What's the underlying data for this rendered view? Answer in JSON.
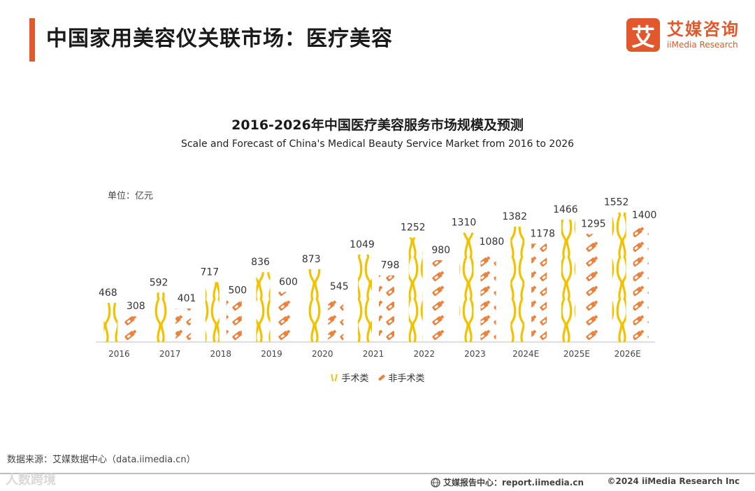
{
  "header": {
    "title": "中国家用美容仪关联市场：医疗美容",
    "brand_cn": "艾媒咨询",
    "brand_en": "iiMedia Research",
    "brand_logo_char": "艾"
  },
  "chart_data": {
    "type": "bar",
    "title": "2016-2026年中国医疗美容服务市场规模及预测",
    "subtitle": "Scale and Forecast of China's Medical Beauty Service Market from 2016 to 2026",
    "unit": "单位：亿元",
    "categories": [
      "2016",
      "2017",
      "2018",
      "2019",
      "2020",
      "2021",
      "2022",
      "2023",
      "2024E",
      "2025E",
      "2026E"
    ],
    "series": [
      {
        "name": "手术类",
        "values": [
          468,
          592,
          717,
          836,
          873,
          1049,
          1252,
          1310,
          1382,
          1466,
          1552
        ],
        "color": "#f2c200"
      },
      {
        "name": "非手术类",
        "values": [
          308,
          401,
          500,
          600,
          545,
          798,
          980,
          1080,
          1178,
          1295,
          1400
        ],
        "color": "#e8823e"
      }
    ],
    "ylim": [
      0,
      1600
    ]
  },
  "source": "数据来源：艾媒数据中心（data.iimedia.cn）",
  "footer": {
    "report": "艾媒报告中心：report.iimedia.cn",
    "copyright": "©2024  iiMedia Research  Inc",
    "watermark": "人数跨境"
  },
  "colors": {
    "accent": "#e2582c",
    "surgical": "#f2c200",
    "nonsurgical": "#e8823e"
  }
}
